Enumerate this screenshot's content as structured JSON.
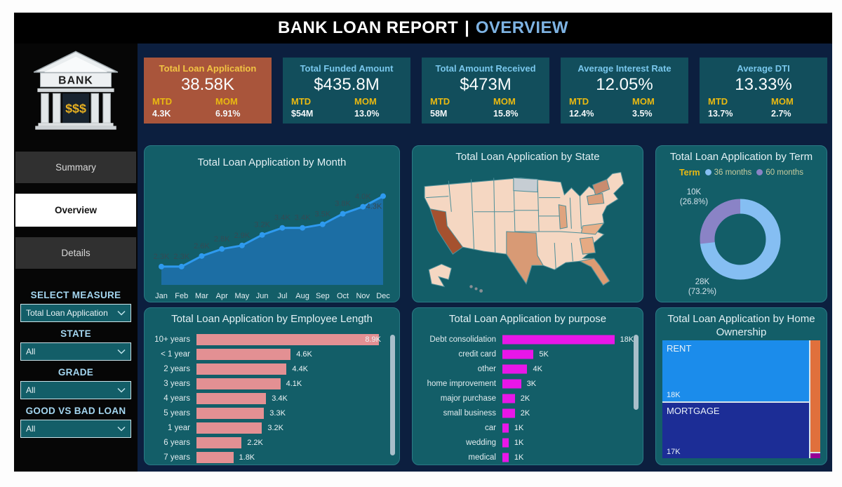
{
  "title": {
    "main": "BANK LOAN REPORT",
    "separator": "|",
    "section": "OVERVIEW"
  },
  "sidebar": {
    "logo": {
      "bank_text": "BANK",
      "dollars": "$$$"
    },
    "nav": [
      {
        "label": "Summary",
        "active": false
      },
      {
        "label": "Overview",
        "active": true
      },
      {
        "label": "Details",
        "active": false
      }
    ],
    "filters": [
      {
        "label": "SELECT MEASURE",
        "value": "Total Loan Application"
      },
      {
        "label": "STATE",
        "value": "All"
      },
      {
        "label": "GRADE",
        "value": "All"
      },
      {
        "label": "GOOD VS BAD LOAN",
        "value": "All"
      }
    ]
  },
  "kpis": [
    {
      "title": "Total Loan Application",
      "value": "38.58K",
      "mtd_label": "MTD",
      "mom_label": "MOM",
      "mtd": "4.3K",
      "mom": "6.91%",
      "highlight": true
    },
    {
      "title": "Total Funded Amount",
      "value": "$435.8M",
      "mtd_label": "MTD",
      "mom_label": "MOM",
      "mtd": "$54M",
      "mom": "13.0%",
      "highlight": false
    },
    {
      "title": "Total Amount Received",
      "value": "$473M",
      "mtd_label": "MTD",
      "mom_label": "MOM",
      "mtd": "58M",
      "mom": "15.8%",
      "highlight": false
    },
    {
      "title": "Average Interest Rate",
      "value": "12.05%",
      "mtd_label": "MTD",
      "mom_label": "MOM",
      "mtd": "12.4%",
      "mom": "3.5%",
      "highlight": false
    },
    {
      "title": "Average DTI",
      "value": "13.33%",
      "mtd_label": "MTD",
      "mom_label": "MOM",
      "mtd": "13.7%",
      "mom": "2.7%",
      "highlight": false
    }
  ],
  "chart_data": [
    {
      "id": "by_month",
      "type": "area",
      "title": "Total Loan Application by Month",
      "categories": [
        "Jan",
        "Feb",
        "Mar",
        "Apr",
        "May",
        "Jun",
        "Jul",
        "Aug",
        "Sep",
        "Oct",
        "Nov",
        "Dec"
      ],
      "values": [
        2.3,
        2.3,
        2.6,
        2.8,
        2.9,
        3.2,
        3.4,
        3.4,
        3.5,
        3.8,
        4.0,
        4.3
      ],
      "labels": [
        "2.3K",
        "2.3K",
        "2.6K",
        "2.8K",
        "2.9K",
        "3.2K",
        "3.4K",
        "3.4K",
        "3.5K",
        "3.8K",
        "4.0K",
        "4.3K"
      ],
      "unit": "K applications",
      "ylim": [
        1.8,
        4.5
      ],
      "grid": false,
      "legend": "none"
    },
    {
      "id": "by_state",
      "type": "map",
      "title": "Total Loan Application by State",
      "note": "US choropleth, darker shade = more applications",
      "shading": {
        "darkest": [
          "California"
        ],
        "darker": [
          "Texas",
          "New York",
          "Florida",
          "Illinois",
          "Pennsylvania",
          "Georgia",
          "North Carolina"
        ],
        "no_data_gray": [
          "North Dakota"
        ],
        "base": "all other states light peach"
      }
    },
    {
      "id": "by_term",
      "type": "donut",
      "title": "Total Loan Application by Term",
      "legend_title": "Term",
      "legend_position": "top",
      "series": [
        {
          "name": "36 months",
          "value_label": "28K",
          "pct": 73.2,
          "color": "#85BEF2"
        },
        {
          "name": "60 months",
          "value_label": "10K",
          "pct": 26.8,
          "color": "#8A83C6"
        }
      ]
    },
    {
      "id": "by_employee_length",
      "type": "bar",
      "title": "Total Loan Application by Employee Length",
      "categories": [
        "10+ years",
        "< 1 year",
        "2 years",
        "3 years",
        "4 years",
        "5 years",
        "1 year",
        "6 years",
        "7 years"
      ],
      "values": [
        8.9,
        4.6,
        4.4,
        4.1,
        3.4,
        3.3,
        3.2,
        2.2,
        1.8
      ],
      "labels": [
        "8.9K",
        "4.6K",
        "4.4K",
        "4.1K",
        "3.4K",
        "3.3K",
        "3.2K",
        "2.2K",
        "1.8K"
      ],
      "unit": "K applications",
      "bar_color": "#E39093",
      "orientation": "horizontal"
    },
    {
      "id": "by_purpose",
      "type": "bar",
      "title": "Total Loan Application by purpose",
      "categories": [
        "Debt consolidation",
        "credit card",
        "other",
        "home improvement",
        "major purchase",
        "small business",
        "car",
        "wedding",
        "medical"
      ],
      "values": [
        18,
        5,
        4,
        3,
        2,
        2,
        1,
        1,
        1
      ],
      "labels": [
        "18K",
        "5K",
        "4K",
        "3K",
        "2K",
        "2K",
        "1K",
        "1K",
        "1K"
      ],
      "unit": "K applications",
      "bar_color": "#E816E8",
      "orientation": "horizontal"
    },
    {
      "id": "by_home_ownership",
      "type": "treemap",
      "title": "Total Loan Application by Home Ownership",
      "items": [
        {
          "name": "RENT",
          "value_label": "18K",
          "color": "#1B8CEB"
        },
        {
          "name": "MORTGAGE",
          "value_label": "17K",
          "color": "#1C2D96"
        },
        {
          "name": "",
          "value_label": "",
          "color": "#E0703C"
        },
        {
          "name": "",
          "value_label": "",
          "color": "#960096"
        }
      ]
    }
  ],
  "colors": {
    "page_bg": "#0C1F3F",
    "header_bg": "#000000",
    "sidebar_bg": "#060606",
    "panel_bg": "#135E68",
    "panel_border": "#2A7A85",
    "kpi_bg": "#124E5C",
    "kpi_highlight_bg": "#A9553B",
    "gold": "#E9B911",
    "light_blue": "#79C7EC",
    "line": "#2E9AEF",
    "area": "#1C6EA4",
    "point_label": "#344A54",
    "bar_salmon": "#E39093",
    "bar_magenta": "#E816E8",
    "map_base": "#F5D7C2",
    "map_dark": "#A5512F",
    "map_gray": "#C6CDD3"
  }
}
